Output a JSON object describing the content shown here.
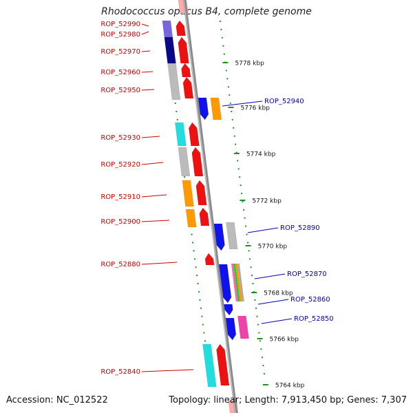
{
  "title": "Rhodococcus opacus B4, complete genome",
  "footer": {
    "accession": "Accession: NC_012522",
    "summary": "Topology: linear; Length: 7,913,450 bp; Genes: 7,307"
  },
  "colors": {
    "backbone": "#8a8a8a",
    "dots": "#1f8f1f",
    "left_label": "#cc0000",
    "right_label": "#0000aa",
    "red": "#ee1111",
    "blue": "#1111ee",
    "navy": "#0a0a88",
    "lavender": "#7766dd",
    "grey": "#bbbbbb",
    "orange": "#ff9900",
    "cyan": "#22dddd",
    "pink": "#ee44aa",
    "pale_red": "#ffaaaa"
  },
  "scale_ticks": [
    {
      "label": "5778 kbp"
    },
    {
      "label": "5776 kbp"
    },
    {
      "label": "5774 kbp"
    },
    {
      "label": "5772 kbp"
    },
    {
      "label": "5770 kbp"
    },
    {
      "label": "5768 kbp"
    },
    {
      "label": "5766 kbp"
    },
    {
      "label": "5764 kbp"
    }
  ],
  "left_labels": [
    {
      "label": "ROP_52990"
    },
    {
      "label": "ROP_52980"
    },
    {
      "label": "ROP_52970"
    },
    {
      "label": "ROP_52960"
    },
    {
      "label": "ROP_52950"
    },
    {
      "label": "ROP_52930"
    },
    {
      "label": "ROP_52920"
    },
    {
      "label": "ROP_52910"
    },
    {
      "label": "ROP_52900"
    },
    {
      "label": "ROP_52880"
    },
    {
      "label": "ROP_52840"
    }
  ],
  "right_labels": [
    {
      "label": "ROP_52940"
    },
    {
      "label": "ROP_52890"
    },
    {
      "label": "ROP_52870"
    },
    {
      "label": "ROP_52860"
    },
    {
      "label": "ROP_52850"
    }
  ]
}
